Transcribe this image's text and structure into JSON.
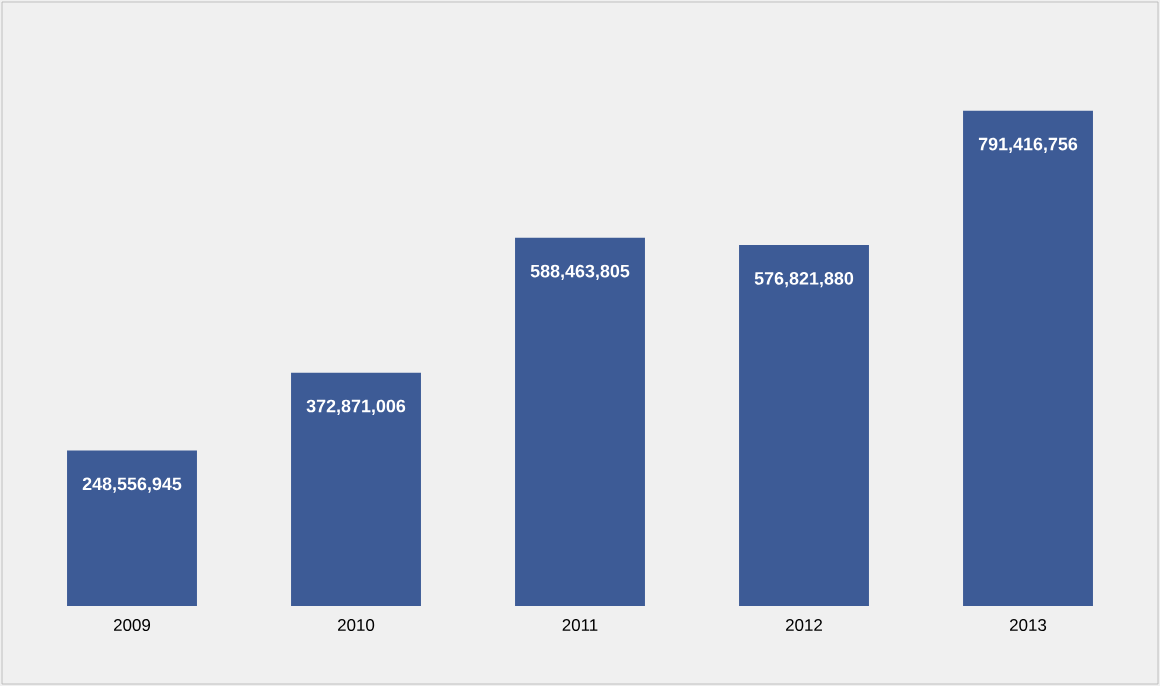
{
  "chart_data": {
    "type": "bar",
    "categories": [
      "2009",
      "2010",
      "2011",
      "2012",
      "2013"
    ],
    "values": [
      248556945,
      372871006,
      588463805,
      576821880,
      791416756
    ],
    "value_labels": [
      "248,556,945",
      "372,871,006",
      "588,463,805",
      "576,821,880",
      "791,416,756"
    ],
    "color": "#3d5b96"
  }
}
